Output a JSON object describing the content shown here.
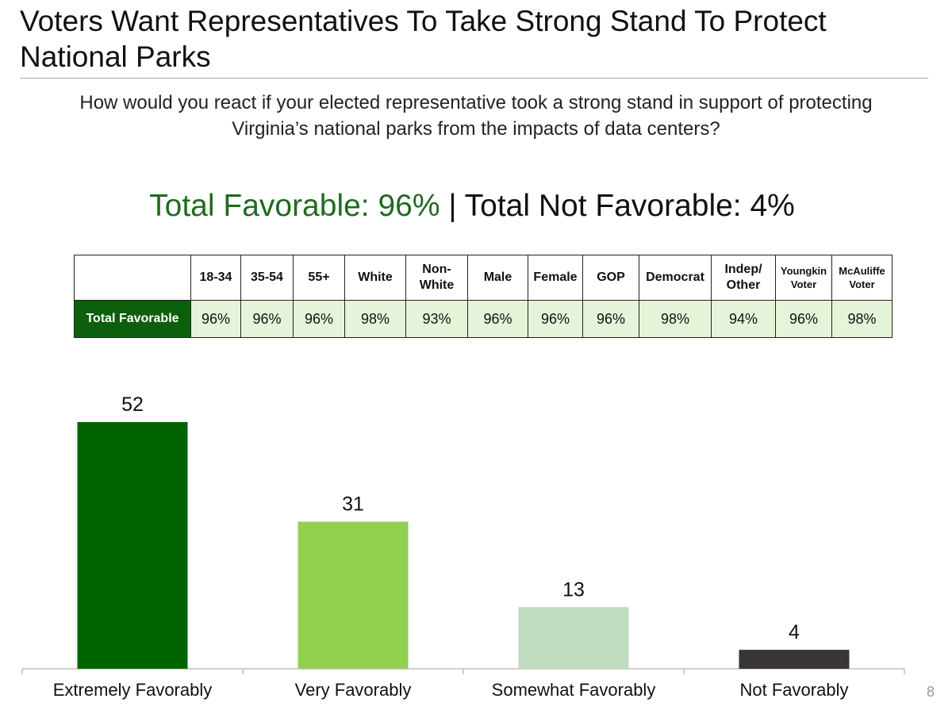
{
  "title": "Voters Want Representatives To Take Strong Stand To Protect National Parks",
  "question": "How would you react if your elected representative took a strong stand in support of protecting Virginia’s national parks from the impacts of data centers?",
  "headline": {
    "favorable": "Total Favorable: 96%",
    "separator": " | ",
    "not_favorable": "Total Not Favorable: 4%"
  },
  "crosstab": {
    "columns": [
      "18-34",
      "35-54",
      "55+",
      "White",
      "Non-White",
      "Male",
      "Female",
      "GOP",
      "Democrat",
      "Indep/ Other",
      "Youngkin Voter",
      "McAuliffe Voter"
    ],
    "row_label": "Total Favorable",
    "values": [
      "96%",
      "96%",
      "96%",
      "98%",
      "93%",
      "96%",
      "96%",
      "96%",
      "98%",
      "94%",
      "96%",
      "98%"
    ]
  },
  "chart_data": {
    "type": "bar",
    "categories": [
      "Extremely Favorably",
      "Very Favorably",
      "Somewhat Favorably",
      "Not Favorably"
    ],
    "values": [
      52,
      31,
      13,
      4
    ],
    "colors": [
      "#006400",
      "#92d050",
      "#bfdcbf",
      "#3a3638"
    ],
    "title": "",
    "xlabel": "",
    "ylabel": "",
    "ylim": [
      0,
      60
    ],
    "grid": false
  },
  "page_number": "8"
}
